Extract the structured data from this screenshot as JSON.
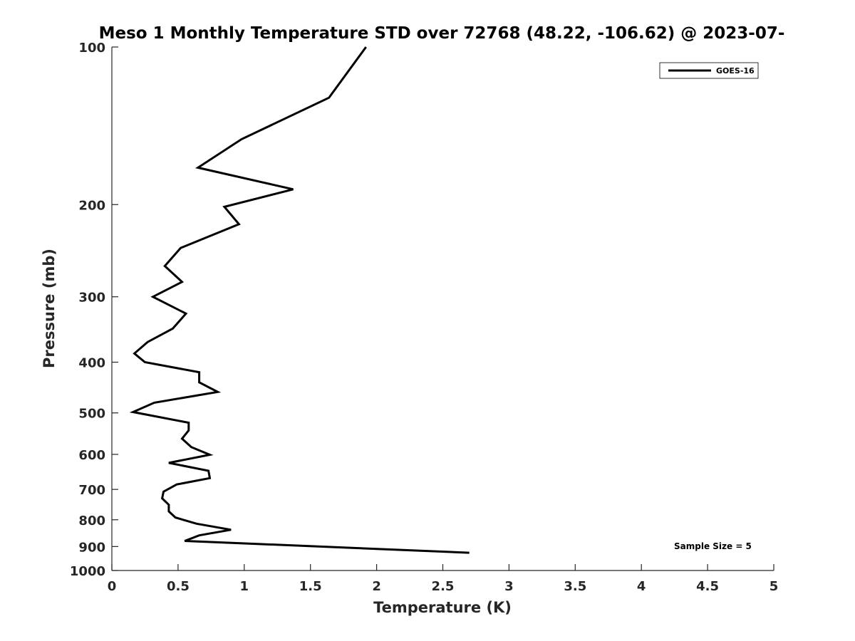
{
  "chart_data": {
    "type": "line",
    "title": "Meso 1 Monthly Temperature STD over 72768 (48.22, -106.62) @ 2023-07-",
    "xlabel": "Temperature (K)",
    "ylabel": "Pressure (mb)",
    "xlim": [
      0,
      5
    ],
    "ylim": [
      100,
      1000
    ],
    "y_scale": "log",
    "y_reversed": true,
    "x_ticks": [
      "0",
      "0.5",
      "1",
      "1.5",
      "2",
      "2.5",
      "3",
      "3.5",
      "4",
      "4.5",
      "5"
    ],
    "y_ticks": [
      "100",
      "200",
      "300",
      "400",
      "500",
      "600",
      "700",
      "800",
      "900",
      "1000"
    ],
    "grid": false,
    "legend": {
      "position": "top-right"
    },
    "annotation": "Sample Size = 5",
    "line_color": "#000000",
    "series": [
      {
        "name": "GOES-16",
        "points": [
          [
            1.92,
            100
          ],
          [
            1.64,
            125
          ],
          [
            0.98,
            150
          ],
          [
            0.65,
            170
          ],
          [
            1.37,
            187
          ],
          [
            0.85,
            202
          ],
          [
            0.96,
            218
          ],
          [
            0.52,
            242
          ],
          [
            0.4,
            262
          ],
          [
            0.53,
            281
          ],
          [
            0.31,
            300
          ],
          [
            0.56,
            323
          ],
          [
            0.46,
            345
          ],
          [
            0.27,
            366
          ],
          [
            0.17,
            385
          ],
          [
            0.25,
            400
          ],
          [
            0.66,
            418
          ],
          [
            0.66,
            437
          ],
          [
            0.8,
            456
          ],
          [
            0.32,
            478
          ],
          [
            0.16,
            498
          ],
          [
            0.58,
            522
          ],
          [
            0.58,
            540
          ],
          [
            0.53,
            560
          ],
          [
            0.6,
            581
          ],
          [
            0.74,
            601
          ],
          [
            0.43,
            623
          ],
          [
            0.73,
            645
          ],
          [
            0.74,
            666
          ],
          [
            0.49,
            685
          ],
          [
            0.39,
            707
          ],
          [
            0.38,
            728
          ],
          [
            0.43,
            749
          ],
          [
            0.43,
            771
          ],
          [
            0.48,
            792
          ],
          [
            0.64,
            814
          ],
          [
            0.9,
            836
          ],
          [
            0.66,
            857
          ],
          [
            0.55,
            878
          ],
          [
            2.7,
            925
          ]
        ]
      }
    ]
  }
}
